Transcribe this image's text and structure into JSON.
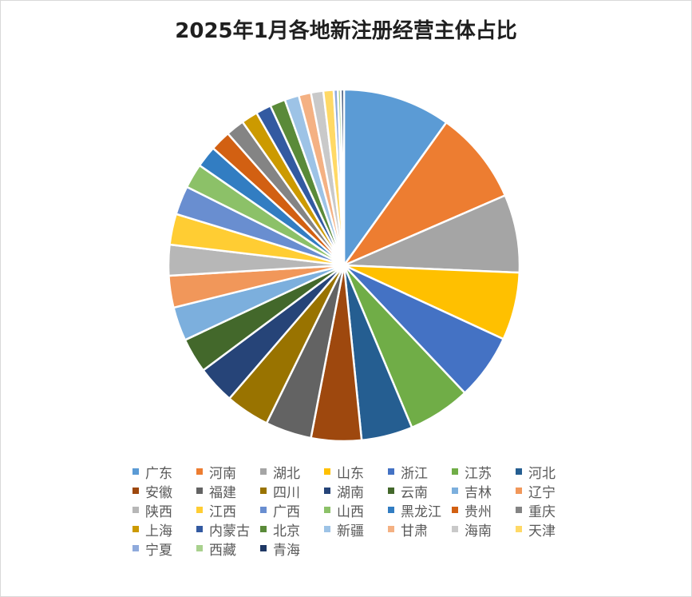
{
  "chart_data": {
    "type": "pie",
    "title": "2025年1月各地新注册经营主体占比",
    "legend_position": "bottom",
    "categories": [
      "广东",
      "河南",
      "湖北",
      "山东",
      "浙江",
      "江苏",
      "河北",
      "安徽",
      "福建",
      "四川",
      "湖南",
      "云南",
      "吉林",
      "辽宁",
      "陕西",
      "江西",
      "广西",
      "山西",
      "黑龙江",
      "贵州",
      "重庆",
      "上海",
      "内蒙古",
      "北京",
      "新疆",
      "甘肃",
      "海南",
      "天津",
      "宁夏",
      "西藏",
      "青海"
    ],
    "values": [
      10.5,
      9.1,
      7.6,
      6.6,
      6.4,
      6.1,
      5.0,
      4.9,
      4.5,
      4.3,
      3.7,
      3.4,
      3.3,
      3.1,
      3.0,
      3.0,
      2.8,
      2.4,
      2.1,
      2.0,
      1.8,
      1.6,
      1.5,
      1.5,
      1.4,
      1.2,
      1.2,
      1.0,
      0.4,
      0.3,
      0.3
    ],
    "colors": [
      "#5b9bd5",
      "#ed7d31",
      "#a5a5a5",
      "#ffc000",
      "#4472c4",
      "#70ad47",
      "#255e91",
      "#9e480e",
      "#636363",
      "#997300",
      "#264478",
      "#43682b",
      "#7cafdd",
      "#f1975a",
      "#b7b7b7",
      "#ffcd33",
      "#698ed0",
      "#8cc168",
      "#327dc2",
      "#d26012",
      "#848484",
      "#cc9a00",
      "#335aa1",
      "#5a8a39",
      "#9dc3e6",
      "#f4b183",
      "#c9c9c9",
      "#ffd966",
      "#8faadc",
      "#a9d18e",
      "#1f3864"
    ]
  }
}
